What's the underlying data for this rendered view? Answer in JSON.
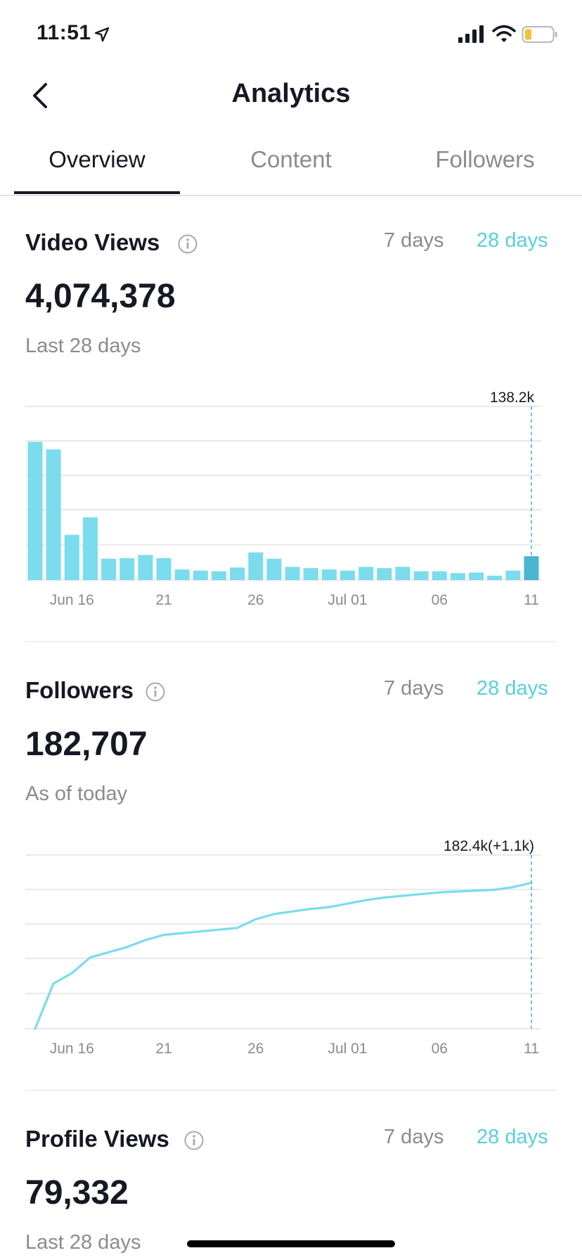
{
  "status_bar": {
    "time": "11:51"
  },
  "nav": {
    "title": "Analytics"
  },
  "tabs": [
    {
      "label": "Overview",
      "active": true
    },
    {
      "label": "Content",
      "active": false
    },
    {
      "label": "Followers",
      "active": false
    }
  ],
  "video_views": {
    "title": "Video Views",
    "range_7": "7 days",
    "range_28": "28 days",
    "value": "4,074,378",
    "subtitle": "Last 28 days"
  },
  "followers": {
    "title": "Followers",
    "range_7": "7 days",
    "range_28": "28 days",
    "value": "182,707",
    "subtitle": "As of today"
  },
  "profile_views": {
    "title": "Profile Views",
    "range_7": "7 days",
    "range_28": "28 days",
    "value": "79,332",
    "subtitle": "Last 28 days"
  },
  "colors": {
    "accent": "#56cfe1",
    "bar": "#7adcec",
    "bar_selected": "#4bb6cf",
    "text": "#161823",
    "muted": "#8a8b91"
  },
  "chart_data": [
    {
      "type": "bar",
      "x": [
        "Jun 14",
        "Jun 15",
        "Jun 16",
        "Jun 17",
        "Jun 18",
        "Jun 19",
        "Jun 20",
        "Jun 21",
        "Jun 22",
        "Jun 23",
        "Jun 24",
        "Jun 25",
        "Jun 26",
        "Jun 27",
        "Jun 28",
        "Jun 29",
        "Jun 30",
        "Jul 01",
        "Jul 02",
        "Jul 03",
        "Jul 04",
        "Jul 05",
        "Jul 06",
        "Jul 07",
        "Jul 08",
        "Jul 09",
        "Jul 10",
        "Jul 11"
      ],
      "values": [
        110000,
        104000,
        36000,
        50000,
        17000,
        17500,
        20000,
        17500,
        8500,
        7500,
        7000,
        10000,
        22000,
        17000,
        10500,
        9500,
        8500,
        7500,
        10500,
        9500,
        10500,
        7000,
        7000,
        5500,
        6000,
        3500,
        7500,
        19000
      ],
      "tick_labels": [
        "Jun 16",
        "21",
        "26",
        "Jul 01",
        "06",
        "11"
      ],
      "tick_positions": [
        "Jun 16",
        "Jun 21",
        "Jun 26",
        "Jul 01",
        "Jul 06",
        "Jul 11"
      ],
      "annotation": "138.2k",
      "ylim": [
        0,
        138200
      ],
      "grid": true
    },
    {
      "type": "line",
      "x": [
        "Jun 14",
        "Jun 15",
        "Jun 16",
        "Jun 17",
        "Jun 18",
        "Jun 19",
        "Jun 20",
        "Jun 21",
        "Jun 22",
        "Jun 23",
        "Jun 24",
        "Jun 25",
        "Jun 26",
        "Jun 27",
        "Jun 28",
        "Jun 29",
        "Jun 30",
        "Jul 01",
        "Jul 02",
        "Jul 03",
        "Jul 04",
        "Jul 05",
        "Jul 06",
        "Jul 07",
        "Jul 08",
        "Jul 09",
        "Jul 10",
        "Jul 11"
      ],
      "values": [
        0.0,
        0.26,
        0.32,
        0.41,
        0.44,
        0.47,
        0.51,
        0.54,
        0.55,
        0.56,
        0.57,
        0.58,
        0.63,
        0.66,
        0.675,
        0.69,
        0.7,
        0.72,
        0.74,
        0.755,
        0.765,
        0.775,
        0.785,
        0.79,
        0.795,
        0.8,
        0.815,
        0.84
      ],
      "value_scale": "fraction of chart height",
      "tick_labels": [
        "Jun 16",
        "21",
        "26",
        "Jul 01",
        "06",
        "11"
      ],
      "tick_positions": [
        "Jun 16",
        "Jun 21",
        "Jun 26",
        "Jul 01",
        "Jul 06",
        "Jul 11"
      ],
      "annotation": "182.4k(+1.1k)",
      "grid": true
    }
  ]
}
